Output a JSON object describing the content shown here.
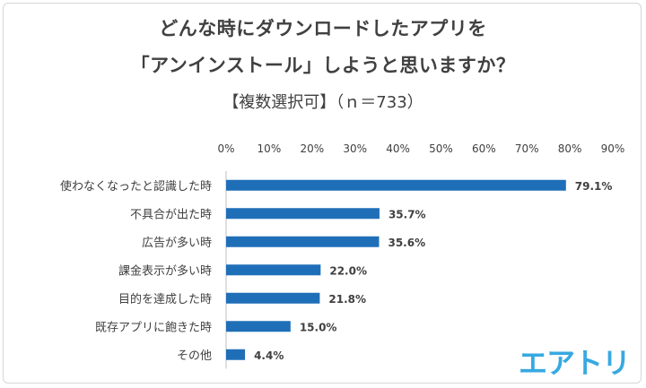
{
  "title_line1": "どんな時にダウンロードしたアプリを",
  "title_line2": "「アンインストール」しようと思いますか？",
  "subtitle": "【複数選択可】（ｎ＝733）",
  "logo_text": "エアトリ",
  "colors": {
    "bar": "#1f6fb8",
    "text": "#404040",
    "logo": "#37a9e1"
  },
  "chart_data": {
    "type": "bar",
    "orientation": "horizontal",
    "categories": [
      "使わなくなったと認識した時",
      "不具合が出た時",
      "広告が多い時",
      "課金表示が多い時",
      "目的を達成した時",
      "既存アプリに飽きた時",
      "その他"
    ],
    "values": [
      79.1,
      35.7,
      35.6,
      22.0,
      21.8,
      15.0,
      4.4
    ],
    "value_labels": [
      "79.1%",
      "35.7%",
      "35.6%",
      "22.0%",
      "21.8%",
      "15.0%",
      "4.4%"
    ],
    "xlim": [
      0,
      90
    ],
    "xticks": [
      0,
      10,
      20,
      30,
      40,
      50,
      60,
      70,
      80,
      90
    ],
    "xtick_labels": [
      "0%",
      "10%",
      "20%",
      "30%",
      "40%",
      "50%",
      "60%",
      "70%",
      "80%",
      "90%"
    ],
    "grid": false,
    "legend": "none"
  }
}
